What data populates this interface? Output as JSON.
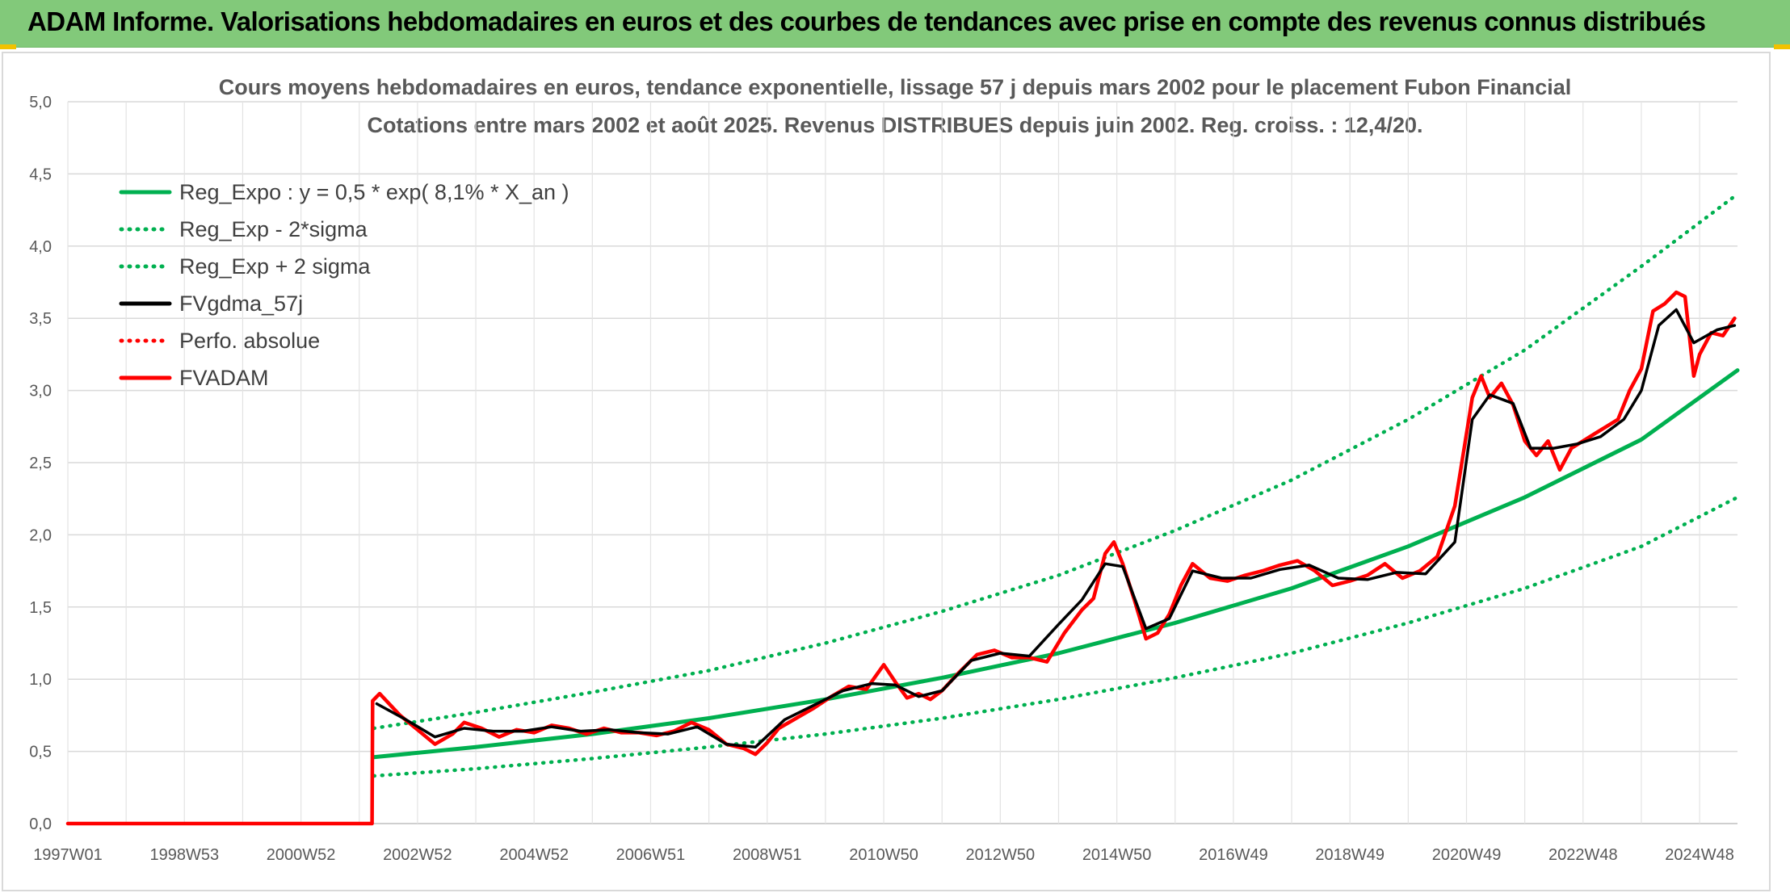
{
  "header": {
    "title": "ADAM Informe. Valorisations hebdomadaires en euros et des courbes de tendances avec prise en compte des revenus connus distribués"
  },
  "chart_data": {
    "type": "line",
    "title": "Cours moyens hebdomadaires en euros, tendance exponentielle, lissage 57 j depuis mars 2002 pour le placement Fubon Financial",
    "subtitle": "Cotations entre mars 2002 et août 2025. Revenus DISTRIBUES depuis juin 2002. Reg. croiss. : 12,4/20.",
    "xlabel": "",
    "ylabel": "",
    "xlim": [
      1997.0,
      2025.65
    ],
    "ylim": [
      0,
      5
    ],
    "y_ticks": [
      "0,0",
      "0,5",
      "1,0",
      "1,5",
      "2,0",
      "2,5",
      "3,0",
      "3,5",
      "4,0",
      "4,5",
      "5,0"
    ],
    "x_ticks": [
      {
        "label": "1997W01",
        "x": 1997.0
      },
      {
        "label": "1998W53",
        "x": 1999.0
      },
      {
        "label": "2000W52",
        "x": 2001.0
      },
      {
        "label": "2002W52",
        "x": 2003.0
      },
      {
        "label": "2004W52",
        "x": 2005.0
      },
      {
        "label": "2006W51",
        "x": 2007.0
      },
      {
        "label": "2008W51",
        "x": 2009.0
      },
      {
        "label": "2010W50",
        "x": 2011.0
      },
      {
        "label": "2012W50",
        "x": 2013.0
      },
      {
        "label": "2014W50",
        "x": 2015.0
      },
      {
        "label": "2016W49",
        "x": 2017.0
      },
      {
        "label": "2018W49",
        "x": 2019.0
      },
      {
        "label": "2020W49",
        "x": 2021.0
      },
      {
        "label": "2022W48",
        "x": 2023.0
      },
      {
        "label": "2024W48",
        "x": 2025.0
      }
    ],
    "grid": true,
    "legend_position": "top-left",
    "series": [
      {
        "name": "Reg_Expo : y = 0,5 * exp( 8,1% *  X_an )",
        "color": "#00b050",
        "style": "solid",
        "x": [
          2002.25,
          2004,
          2006,
          2008,
          2010,
          2012,
          2014,
          2016,
          2018,
          2020,
          2022,
          2024,
          2025.65
        ],
        "y": [
          0.46,
          0.53,
          0.62,
          0.73,
          0.86,
          1.01,
          1.18,
          1.39,
          1.63,
          1.92,
          2.26,
          2.66,
          3.14
        ]
      },
      {
        "name": "Reg_Exp - 2*sigma",
        "color": "#00b050",
        "style": "dotted",
        "x": [
          2002.25,
          2004,
          2006,
          2008,
          2010,
          2012,
          2014,
          2016,
          2018,
          2020,
          2022,
          2024,
          2025.65
        ],
        "y": [
          0.33,
          0.38,
          0.45,
          0.53,
          0.62,
          0.73,
          0.86,
          1.01,
          1.18,
          1.39,
          1.63,
          1.92,
          2.26
        ]
      },
      {
        "name": "Reg_Exp + 2 sigma",
        "color": "#00b050",
        "style": "dotted",
        "x": [
          2002.25,
          2004,
          2006,
          2008,
          2010,
          2012,
          2014,
          2016,
          2018,
          2020,
          2022,
          2024,
          2025.65
        ],
        "y": [
          0.66,
          0.77,
          0.91,
          1.06,
          1.25,
          1.47,
          1.72,
          2.03,
          2.38,
          2.8,
          3.28,
          3.86,
          4.36
        ]
      },
      {
        "name": "FVgdma_57j",
        "color": "#000000",
        "style": "solid",
        "x": [
          2002.3,
          2002.8,
          2003.3,
          2003.8,
          2004.3,
          2004.8,
          2005.3,
          2005.8,
          2006.3,
          2006.8,
          2007.3,
          2007.8,
          2008.3,
          2008.8,
          2009.3,
          2009.8,
          2010.3,
          2010.8,
          2011.2,
          2011.6,
          2012.0,
          2012.5,
          2013.0,
          2013.5,
          2014.0,
          2014.4,
          2014.8,
          2015.1,
          2015.5,
          2015.9,
          2016.3,
          2016.8,
          2017.3,
          2017.8,
          2018.3,
          2018.8,
          2019.3,
          2019.8,
          2020.3,
          2020.8,
          2021.1,
          2021.4,
          2021.8,
          2022.1,
          2022.5,
          2022.9,
          2023.3,
          2023.7,
          2024.0,
          2024.3,
          2024.6,
          2024.9,
          2025.3,
          2025.6
        ],
        "y": [
          0.83,
          0.72,
          0.6,
          0.66,
          0.64,
          0.64,
          0.67,
          0.64,
          0.65,
          0.63,
          0.62,
          0.67,
          0.55,
          0.53,
          0.72,
          0.82,
          0.92,
          0.97,
          0.96,
          0.88,
          0.92,
          1.13,
          1.18,
          1.16,
          1.38,
          1.55,
          1.8,
          1.78,
          1.35,
          1.42,
          1.75,
          1.7,
          1.7,
          1.76,
          1.79,
          1.7,
          1.69,
          1.74,
          1.73,
          1.95,
          2.8,
          2.97,
          2.91,
          2.6,
          2.6,
          2.63,
          2.68,
          2.8,
          3.0,
          3.45,
          3.56,
          3.33,
          3.42,
          3.45
        ]
      },
      {
        "name": "Perfo. absolue",
        "color": "#ff0000",
        "style": "dotted",
        "x": [],
        "y": []
      },
      {
        "name": "FVADAM",
        "color": "#ff0000",
        "style": "solid",
        "x": [
          1997.0,
          2002.22,
          2002.23,
          2002.35,
          2002.7,
          2003.0,
          2003.3,
          2003.6,
          2003.8,
          2004.1,
          2004.4,
          2004.7,
          2005.0,
          2005.3,
          2005.6,
          2005.9,
          2006.2,
          2006.5,
          2006.8,
          2007.1,
          2007.4,
          2007.7,
          2008.0,
          2008.3,
          2008.6,
          2008.8,
          2009.0,
          2009.2,
          2009.5,
          2009.8,
          2010.1,
          2010.4,
          2010.7,
          2011.0,
          2011.2,
          2011.4,
          2011.6,
          2011.8,
          2012.0,
          2012.3,
          2012.6,
          2012.9,
          2013.2,
          2013.5,
          2013.8,
          2014.1,
          2014.4,
          2014.6,
          2014.8,
          2014.95,
          2015.1,
          2015.3,
          2015.5,
          2015.7,
          2015.9,
          2016.1,
          2016.3,
          2016.6,
          2016.9,
          2017.2,
          2017.5,
          2017.8,
          2018.1,
          2018.4,
          2018.7,
          2019.0,
          2019.3,
          2019.6,
          2019.9,
          2020.2,
          2020.5,
          2020.8,
          2021.0,
          2021.1,
          2021.25,
          2021.4,
          2021.6,
          2021.8,
          2022.0,
          2022.2,
          2022.4,
          2022.6,
          2022.8,
          2023.0,
          2023.2,
          2023.4,
          2023.6,
          2023.8,
          2024.0,
          2024.2,
          2024.4,
          2024.6,
          2024.75,
          2024.9,
          2025.0,
          2025.2,
          2025.4,
          2025.6
        ],
        "y": [
          0.0,
          0.0,
          0.85,
          0.9,
          0.75,
          0.65,
          0.55,
          0.62,
          0.7,
          0.66,
          0.6,
          0.65,
          0.63,
          0.68,
          0.66,
          0.62,
          0.66,
          0.63,
          0.63,
          0.61,
          0.64,
          0.7,
          0.65,
          0.55,
          0.52,
          0.48,
          0.56,
          0.66,
          0.73,
          0.8,
          0.88,
          0.95,
          0.93,
          1.1,
          0.98,
          0.87,
          0.9,
          0.86,
          0.92,
          1.05,
          1.17,
          1.2,
          1.15,
          1.15,
          1.12,
          1.32,
          1.48,
          1.56,
          1.87,
          1.95,
          1.8,
          1.55,
          1.28,
          1.32,
          1.45,
          1.65,
          1.8,
          1.7,
          1.68,
          1.72,
          1.75,
          1.79,
          1.82,
          1.75,
          1.65,
          1.68,
          1.72,
          1.8,
          1.7,
          1.75,
          1.85,
          2.2,
          2.7,
          2.95,
          3.1,
          2.95,
          3.05,
          2.9,
          2.65,
          2.55,
          2.65,
          2.45,
          2.6,
          2.65,
          2.7,
          2.75,
          2.8,
          3.0,
          3.15,
          3.55,
          3.6,
          3.68,
          3.65,
          3.1,
          3.25,
          3.4,
          3.38,
          3.5
        ]
      }
    ]
  }
}
